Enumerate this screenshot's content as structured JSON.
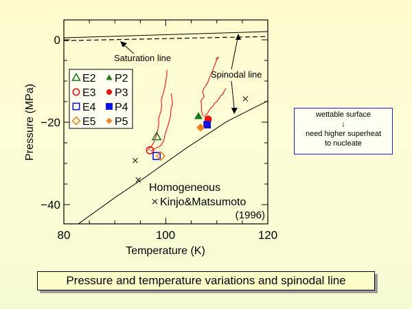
{
  "chart_data": {
    "type": "scatter",
    "xlabel": "Temperature (K)",
    "ylabel": "Pressure (MPa)",
    "xlim": [
      80,
      120
    ],
    "ylim": [
      -44.7,
      4.8
    ],
    "x_ticks": [
      80,
      100,
      120
    ],
    "x_tick_labels": [
      "80",
      "100",
      "120"
    ],
    "x_minor_step": 5,
    "y_ticks": [
      0,
      -20,
      -40
    ],
    "y_tick_labels": [
      "0",
      "−20",
      "−40"
    ],
    "y_minor_step": 5,
    "grid": false,
    "legend_position": "top-left",
    "legend": [
      {
        "label": "E2",
        "marker": "triangle-open",
        "color": "#1a7a1a"
      },
      {
        "label": "P2",
        "marker": "triangle-filled",
        "color": "#1a7a1a"
      },
      {
        "label": "E3",
        "marker": "circle-open",
        "color": "#e81010"
      },
      {
        "label": "P3",
        "marker": "circle-filled",
        "color": "#e81010"
      },
      {
        "label": "E4",
        "marker": "square-open",
        "color": "#1010e0"
      },
      {
        "label": "P4",
        "marker": "square-filled",
        "color": "#1010e0"
      },
      {
        "label": "E5",
        "marker": "diamond-open",
        "color": "#f08020"
      },
      {
        "label": "P5",
        "marker": "diamond-filled",
        "color": "#f08020"
      }
    ],
    "series": [
      {
        "name": "E2",
        "marker": "triangle-open",
        "color": "#1a7a1a",
        "points": [
          [
            98.2,
            -23.5
          ]
        ]
      },
      {
        "name": "E3",
        "marker": "circle-open",
        "color": "#e81010",
        "points": [
          [
            96.9,
            -26.8
          ]
        ]
      },
      {
        "name": "E4",
        "marker": "square-open",
        "color": "#1010e0",
        "points": [
          [
            98.2,
            -28.2
          ]
        ]
      },
      {
        "name": "E5",
        "marker": "diamond-open",
        "color": "#f08020",
        "points": [
          [
            99.0,
            -28.2
          ]
        ]
      },
      {
        "name": "P2",
        "marker": "triangle-filled",
        "color": "#1a7a1a",
        "points": [
          [
            106.4,
            -18.5
          ]
        ]
      },
      {
        "name": "P3",
        "marker": "circle-filled",
        "color": "#e81010",
        "points": [
          [
            108.3,
            -19.3
          ]
        ]
      },
      {
        "name": "P4",
        "marker": "square-filled",
        "color": "#1010e0",
        "points": [
          [
            108.1,
            -20.6
          ]
        ]
      },
      {
        "name": "P5",
        "marker": "diamond-filled",
        "color": "#f08020",
        "points": [
          [
            106.8,
            -21.3
          ]
        ]
      },
      {
        "name": "Kinjo&Matsumoto (1996)",
        "marker": "x",
        "color": "#000000",
        "points": [
          [
            94.0,
            -29.3
          ],
          [
            94.6,
            -34.0
          ],
          [
            115.6,
            -14.3
          ]
        ]
      }
    ],
    "lines": [
      {
        "name": "Saturation line",
        "style": "dashed",
        "color": "#000000",
        "points": [
          [
            80,
            -0.2
          ],
          [
            120,
            0.8
          ]
        ]
      },
      {
        "name": "Upper solid line",
        "style": "solid",
        "color": "#000000",
        "points": [
          [
            80,
            0.5
          ],
          [
            120,
            2.0
          ]
        ]
      },
      {
        "name": "Spinodal line",
        "style": "solid",
        "color": "#000000",
        "points": [
          [
            82.8,
            -44.7
          ],
          [
            90,
            -38.3
          ],
          [
            96,
            -33.3
          ],
          [
            104,
            -26.3
          ],
          [
            112,
            -19.8
          ],
          [
            120,
            -14.8
          ]
        ]
      }
    ],
    "traces": [
      {
        "name": "E-trace-1",
        "color": "#e81010",
        "points": [
          [
            96.5,
            -26.8
          ],
          [
            97.1,
            -26.0
          ],
          [
            97.6,
            -25.0
          ],
          [
            98.0,
            -23.8
          ],
          [
            98.4,
            -22.0
          ],
          [
            98.6,
            -20.5
          ],
          [
            98.6,
            -19.0
          ],
          [
            99.0,
            -17.5
          ],
          [
            99.2,
            -16.0
          ],
          [
            99.1,
            -14.5
          ],
          [
            99.5,
            -13.0
          ],
          [
            99.8,
            -11.5
          ],
          [
            100.0,
            -10.0
          ],
          [
            100.2,
            -8.5
          ],
          [
            100.2,
            -7.3
          ]
        ]
      },
      {
        "name": "E-trace-2",
        "color": "#e81010",
        "points": [
          [
            97.0,
            -27.0
          ],
          [
            98.0,
            -26.3
          ],
          [
            99.0,
            -25.7
          ],
          [
            99.6,
            -24.5
          ],
          [
            99.9,
            -22.7
          ],
          [
            100.3,
            -21.3
          ],
          [
            100.6,
            -20.0
          ],
          [
            100.9,
            -18.6
          ],
          [
            101.0,
            -17.0
          ],
          [
            101.3,
            -15.5
          ],
          [
            101.2,
            -14.2
          ],
          [
            101.0,
            -13.0
          ]
        ]
      },
      {
        "name": "P-trace-1",
        "color": "#e81010",
        "points": [
          [
            107.3,
            -18.5
          ],
          [
            107.0,
            -17.3
          ],
          [
            107.0,
            -16.0
          ],
          [
            106.9,
            -14.8
          ],
          [
            107.5,
            -13.8
          ],
          [
            107.2,
            -12.5
          ],
          [
            107.6,
            -11.5
          ],
          [
            108.2,
            -10.5
          ],
          [
            108.5,
            -9.3
          ],
          [
            109.0,
            -8.0
          ],
          [
            109.4,
            -6.8
          ],
          [
            109.7,
            -5.8
          ],
          [
            110.0,
            -4.8
          ],
          [
            110.4,
            -4.2
          ],
          [
            109.8,
            -4.6
          ]
        ]
      },
      {
        "name": "P-trace-2",
        "color": "#e81010",
        "points": [
          [
            107.5,
            -18.7
          ],
          [
            108.2,
            -17.8
          ],
          [
            108.7,
            -16.7
          ],
          [
            109.2,
            -16.2
          ],
          [
            109.6,
            -15.3
          ],
          [
            110.0,
            -15.0
          ],
          [
            110.4,
            -14.3
          ],
          [
            110.8,
            -13.5
          ],
          [
            111.2,
            -13.2
          ],
          [
            111.5,
            -12.3
          ],
          [
            111.8,
            -11.8
          ]
        ]
      }
    ],
    "annotations": {
      "saturation_line": "Saturation line",
      "spinodal_line": "Spinodal line",
      "homogeneous": "Homogeneous",
      "kinjo": "Kinjo&Matsumoto",
      "year": "(1996)"
    }
  },
  "note": {
    "line1": "wettable surface",
    "arrow": "↓",
    "line2": "need higher superheat",
    "line3": "to nucleate"
  },
  "caption": "Pressure and temperature variations and spinodal line"
}
